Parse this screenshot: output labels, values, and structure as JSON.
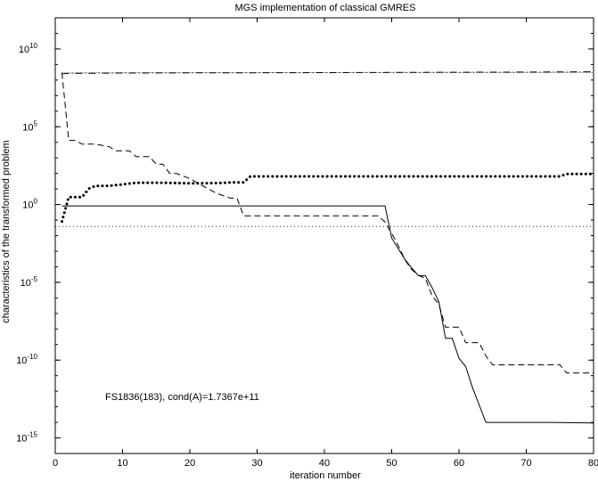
{
  "chart_data": {
    "type": "line",
    "title": "MGS implementation of classical GMRES",
    "xlabel": "iteration number",
    "ylabel": "characteristics of the transformed problem",
    "xlim": [
      0,
      80
    ],
    "ylim_log10": [
      -16,
      12
    ],
    "yscale": "log",
    "grid": false,
    "xticks": [
      0,
      10,
      20,
      30,
      40,
      50,
      60,
      70,
      80
    ],
    "yticks": [
      {
        "exp": 10,
        "base": "10",
        "sup": "10"
      },
      {
        "exp": 5,
        "base": "10",
        "sup": "5"
      },
      {
        "exp": 0,
        "base": "10",
        "sup": "0"
      },
      {
        "exp": -5,
        "base": "10",
        "sup": "-5"
      },
      {
        "exp": -10,
        "base": "10",
        "sup": "-10"
      },
      {
        "exp": -15,
        "base": "10",
        "sup": "-15"
      }
    ],
    "annotation": "FS1836(183), cond(A)=1.7367e+11",
    "series": [
      {
        "style": "dashdot",
        "points": [
          [
            1,
            251000000.0
          ],
          [
            2,
            269000000.0
          ],
          [
            10,
            282000000.0
          ],
          [
            20,
            288000000.0
          ],
          [
            30,
            295000000.0
          ],
          [
            40,
            302000000.0
          ],
          [
            50,
            309000000.0
          ],
          [
            60,
            316000000.0
          ],
          [
            70,
            324000000.0
          ],
          [
            80,
            339000000.0
          ]
        ]
      },
      {
        "style": "dotted-fine",
        "points": [
          [
            1,
            302000000.0
          ],
          [
            10,
            302000000.0
          ],
          [
            20,
            302000000.0
          ],
          [
            40,
            302000000.0
          ],
          [
            60,
            302000000.0
          ],
          [
            80,
            302000000.0
          ]
        ]
      },
      {
        "style": "dashed",
        "points": [
          [
            1,
            302000000.0
          ],
          [
            2,
            13200.0
          ],
          [
            3,
            13200.0
          ],
          [
            4,
            7590.0
          ],
          [
            6,
            7590.0
          ],
          [
            8,
            5250.0
          ],
          [
            9,
            2880.0
          ],
          [
            11,
            2880.0
          ],
          [
            12,
            1200.0
          ],
          [
            14,
            1200.0
          ],
          [
            15,
            398.0
          ],
          [
            16,
            398.0
          ],
          [
            17,
            100.0
          ],
          [
            18,
            100.0
          ],
          [
            20,
            46.8
          ],
          [
            22,
            15.1
          ],
          [
            24,
            5.25
          ],
          [
            26,
            2.57
          ],
          [
            27,
            2.57
          ],
          [
            28,
            0.186
          ],
          [
            48,
            0.186
          ],
          [
            49,
            0.0759
          ],
          [
            50,
            0.0141
          ],
          [
            51,
            0.00224
          ],
          [
            52,
            0.000263
          ],
          [
            53,
            6.61e-05
          ],
          [
            54,
            2.75e-05
          ],
          [
            55,
            1.82e-05
          ],
          [
            56,
            1.38e-06
          ],
          [
            57,
            3.98e-07
          ],
          [
            58,
            1.32e-08
          ],
          [
            60,
            1.32e-08
          ],
          [
            61,
            1.32e-09
          ],
          [
            62,
            1.32e-09
          ],
          [
            63,
            1.32e-09
          ],
          [
            64,
            1.86e-10
          ],
          [
            65,
            5.01e-11
          ],
          [
            66,
            5.01e-11
          ],
          [
            70,
            5.01e-11
          ],
          [
            72,
            5.01e-11
          ],
          [
            75,
            5.01e-11
          ],
          [
            76,
            1.51e-11
          ],
          [
            78,
            1.51e-11
          ],
          [
            80,
            1.51e-11
          ]
        ]
      },
      {
        "style": "dotted-bold",
        "points": [
          [
            1,
            0.0813
          ],
          [
            2,
            3.02
          ],
          [
            4,
            3.02
          ],
          [
            5,
            10.5
          ],
          [
            6,
            15.8
          ],
          [
            8,
            15.8
          ],
          [
            10,
            19.5
          ],
          [
            12,
            25.1
          ],
          [
            16,
            25.1
          ],
          [
            20,
            22.9
          ],
          [
            24,
            24.0
          ],
          [
            26,
            26.3
          ],
          [
            28,
            26.3
          ],
          [
            29,
            64.6
          ],
          [
            30,
            64.6
          ],
          [
            40,
            64.6
          ],
          [
            50,
            64.6
          ],
          [
            60,
            64.6
          ],
          [
            70,
            64.6
          ],
          [
            72,
            64.6
          ],
          [
            75,
            64.6
          ],
          [
            76,
            93.3
          ],
          [
            78,
            93.3
          ],
          [
            80,
            93.3
          ]
        ]
      },
      {
        "style": "solid",
        "points": [
          [
            1,
            0.813
          ],
          [
            10,
            0.813
          ],
          [
            20,
            0.813
          ],
          [
            30,
            0.813
          ],
          [
            40,
            0.813
          ],
          [
            45,
            0.813
          ],
          [
            49,
            0.813
          ],
          [
            50,
            0.00708
          ],
          [
            51,
            0.00141
          ],
          [
            52,
            0.000288
          ],
          [
            53,
            8.13e-05
          ],
          [
            54,
            2.69e-05
          ],
          [
            55,
            2.69e-05
          ],
          [
            56,
            4.68e-06
          ],
          [
            57,
            5.62e-07
          ],
          [
            58,
            2.51e-09
          ],
          [
            59,
            2.51e-09
          ],
          [
            60,
            1.32e-10
          ],
          [
            61,
            3.89e-11
          ],
          [
            62,
            1.78e-12
          ],
          [
            63,
            1.35e-13
          ],
          [
            64,
            1e-14
          ],
          [
            66,
            1e-14
          ],
          [
            70,
            1e-14
          ],
          [
            74,
            1e-14
          ],
          [
            80,
            9.12e-15
          ]
        ]
      },
      {
        "style": "dotted-fine-horizontal",
        "points": [
          [
            0,
            0.0389
          ],
          [
            80,
            0.0389
          ]
        ]
      }
    ]
  }
}
